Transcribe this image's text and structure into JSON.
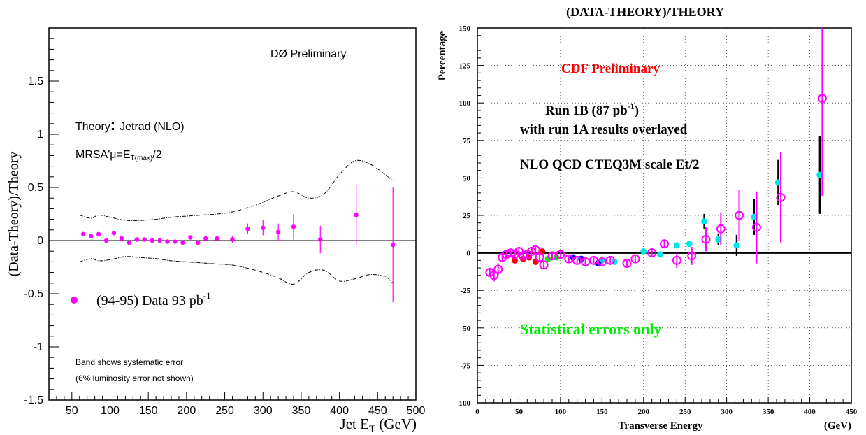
{
  "colors": {
    "magenta": "#ff00ff",
    "cyan": "#00e5e5",
    "red": "#ff0000",
    "blue": "#0000ff",
    "green": "#00ee00",
    "black": "#000000"
  },
  "chart_data": [
    {
      "type": "scatter",
      "ylabel": "(Data-Theory)/Theory",
      "xlabel_main": "Jet E",
      "xlabel_sub": "T",
      "xlabel_unit": " (GeV)",
      "xlim": [
        20,
        500
      ],
      "ylim": [
        -1.5,
        2.0
      ],
      "x_ticks": [
        "50",
        "100",
        "150",
        "200",
        "250",
        "300",
        "350",
        "400",
        "450",
        "500"
      ],
      "x_tick_values": [
        50,
        100,
        150,
        200,
        250,
        300,
        350,
        400,
        450,
        500
      ],
      "y_ticks": [
        "-1.5",
        "-1",
        "-0.5",
        "0",
        "0.5",
        "1",
        "1.5"
      ],
      "y_tick_values": [
        -1.5,
        -1,
        -0.5,
        0,
        0.5,
        1,
        1.5
      ],
      "annotation_top": "DØ Preliminary",
      "theory_label": "Theory",
      "theory_colon": ":",
      "theory_value": "Jetrad (NLO)",
      "mrsa_label": "MRSA'",
      "mu_eq": "μ=E",
      "mu_sub": "T(max)",
      "mu_tail": "/2",
      "legend_label": "(94-95) Data 93 pb",
      "legend_sup": "-1",
      "band_note_1": "Band shows systematic error",
      "band_note_2": "(6% luminosity error not shown)",
      "series": [
        {
          "marker": "filled-circle",
          "color": "#ff00ff",
          "points": [
            {
              "x": 65,
              "y": 0.06,
              "err": 0
            },
            {
              "x": 75,
              "y": 0.04,
              "err": 0
            },
            {
              "x": 85,
              "y": 0.06,
              "err": 0
            },
            {
              "x": 95,
              "y": 0.0,
              "err": 0
            },
            {
              "x": 105,
              "y": 0.07,
              "err": 0
            },
            {
              "x": 115,
              "y": 0.02,
              "err": 0
            },
            {
              "x": 125,
              "y": -0.02,
              "err": 0
            },
            {
              "x": 135,
              "y": 0.01,
              "err": 0
            },
            {
              "x": 145,
              "y": 0.01,
              "err": 0
            },
            {
              "x": 155,
              "y": 0.0,
              "err": 0
            },
            {
              "x": 165,
              "y": 0.0,
              "err": 0
            },
            {
              "x": 175,
              "y": -0.01,
              "err": 0
            },
            {
              "x": 185,
              "y": -0.01,
              "err": 0
            },
            {
              "x": 195,
              "y": -0.02,
              "err": 0
            },
            {
              "x": 205,
              "y": 0.03,
              "err": 0
            },
            {
              "x": 215,
              "y": -0.02,
              "err": 0
            },
            {
              "x": 225,
              "y": 0.02,
              "err": 0
            },
            {
              "x": 240,
              "y": 0.02,
              "err": 0
            },
            {
              "x": 260,
              "y": 0.01,
              "err": 0.03
            },
            {
              "x": 280,
              "y": 0.11,
              "err": 0.05
            },
            {
              "x": 300,
              "y": 0.12,
              "err": 0.07
            },
            {
              "x": 320,
              "y": 0.08,
              "err": 0.08
            },
            {
              "x": 340,
              "y": 0.13,
              "err": 0.12
            },
            {
              "x": 375,
              "y": 0.01,
              "err": 0.13
            },
            {
              "x": 422,
              "y": 0.24,
              "err": 0.28
            },
            {
              "x": 470,
              "y": -0.04,
              "err": 0.54
            }
          ]
        }
      ],
      "band": {
        "x": [
          60,
          75,
          85,
          100,
          120,
          140,
          160,
          180,
          200,
          220,
          240,
          260,
          280,
          300,
          320,
          340,
          360,
          380,
          400,
          420,
          440,
          460,
          470
        ],
        "upper": [
          0.24,
          0.21,
          0.24,
          0.22,
          0.19,
          0.19,
          0.2,
          0.22,
          0.23,
          0.24,
          0.25,
          0.27,
          0.31,
          0.36,
          0.42,
          0.46,
          0.4,
          0.44,
          0.62,
          0.75,
          0.72,
          0.62,
          0.56
        ],
        "lower": [
          -0.2,
          -0.17,
          -0.19,
          -0.18,
          -0.15,
          -0.16,
          -0.17,
          -0.19,
          -0.2,
          -0.21,
          -0.22,
          -0.23,
          -0.26,
          -0.3,
          -0.35,
          -0.41,
          -0.3,
          -0.28,
          -0.38,
          -0.36,
          -0.32,
          -0.34,
          -0.4
        ]
      }
    },
    {
      "type": "scatter",
      "title": "(DATA-THEORY)/THEORY",
      "ylabel": "Percentage",
      "xlabel": "Transverse Energy",
      "xunit": "(GeV)",
      "xlim": [
        0,
        450
      ],
      "ylim": [
        -100,
        150
      ],
      "grid": true,
      "x_ticks": [
        "0",
        "50",
        "100",
        "150",
        "200",
        "250",
        "300",
        "350",
        "400",
        "450"
      ],
      "x_tick_values": [
        0,
        50,
        100,
        150,
        200,
        250,
        300,
        350,
        400,
        450
      ],
      "y_ticks": [
        "-100",
        "-75",
        "-50",
        "-25",
        "0",
        "25",
        "50",
        "75",
        "100",
        "125",
        "150"
      ],
      "y_tick_values": [
        -100,
        -75,
        -50,
        -25,
        0,
        25,
        50,
        75,
        100,
        125,
        150
      ],
      "annotation_cdf": "CDF Preliminary",
      "annotation_run_a": "Run 1B (87 pb",
      "annotation_run_sup": "-1",
      "annotation_run_b": ")",
      "annotation_overlay": "with run 1A results overlayed",
      "annotation_nlo": "NLO QCD CTEQ3M  scale Et/2",
      "annotation_stat": "Statistical errors  only",
      "series": [
        {
          "marker": "open-circle",
          "color": "#ff00ff",
          "points": [
            {
              "x": 15,
              "y": -13,
              "err": 3
            },
            {
              "x": 20,
              "y": -15,
              "err": 4
            },
            {
              "x": 25,
              "y": -11,
              "err": 4
            },
            {
              "x": 30,
              "y": -3,
              "err": 3
            },
            {
              "x": 35,
              "y": -1,
              "err": 2
            },
            {
              "x": 40,
              "y": 0,
              "err": 2
            },
            {
              "x": 45,
              "y": -1,
              "err": 2
            },
            {
              "x": 50,
              "y": 1,
              "err": 2
            },
            {
              "x": 55,
              "y": -2,
              "err": 2
            },
            {
              "x": 60,
              "y": -1,
              "err": 2
            },
            {
              "x": 65,
              "y": 1,
              "err": 2
            },
            {
              "x": 70,
              "y": 2,
              "err": 2
            },
            {
              "x": 75,
              "y": -3,
              "err": 2
            },
            {
              "x": 80,
              "y": -8,
              "err": 3
            },
            {
              "x": 90,
              "y": -2,
              "err": 2
            },
            {
              "x": 100,
              "y": -1,
              "err": 2
            },
            {
              "x": 110,
              "y": -4,
              "err": 2
            },
            {
              "x": 120,
              "y": -5,
              "err": 2
            },
            {
              "x": 130,
              "y": -6,
              "err": 2
            },
            {
              "x": 140,
              "y": -5,
              "err": 2
            },
            {
              "x": 150,
              "y": -6,
              "err": 2
            },
            {
              "x": 160,
              "y": -5,
              "err": 2
            },
            {
              "x": 180,
              "y": -7,
              "err": 2
            },
            {
              "x": 190,
              "y": -4,
              "err": 2
            },
            {
              "x": 210,
              "y": 0,
              "err": 3
            },
            {
              "x": 225,
              "y": 6,
              "err": 3
            },
            {
              "x": 240,
              "y": -5,
              "err": 5
            },
            {
              "x": 258,
              "y": -2,
              "err": 6
            },
            {
              "x": 275,
              "y": 9,
              "err": 8
            },
            {
              "x": 293,
              "y": 16,
              "err": 11
            },
            {
              "x": 315,
              "y": 25,
              "err": 17
            },
            {
              "x": 336,
              "y": 17,
              "err": 24
            },
            {
              "x": 365,
              "y": 37,
              "err": 30
            },
            {
              "x": 415,
              "y": 103,
              "err": 65
            }
          ]
        },
        {
          "marker": "filled-circle",
          "color": "#00e5e5",
          "points": [
            {
              "x": 150,
              "y": -5,
              "err": 0
            },
            {
              "x": 165,
              "y": -6,
              "err": 0
            },
            {
              "x": 200,
              "y": 1,
              "err": 0
            },
            {
              "x": 220,
              "y": -1,
              "err": 0
            },
            {
              "x": 240,
              "y": 5,
              "err": 0
            },
            {
              "x": 255,
              "y": 6,
              "err": 0
            },
            {
              "x": 273,
              "y": 21,
              "err": 5
            },
            {
              "x": 290,
              "y": 9,
              "err": 4
            },
            {
              "x": 312,
              "y": 5,
              "err": 7
            },
            {
              "x": 333,
              "y": 24,
              "err": 12
            },
            {
              "x": 362,
              "y": 47,
              "err": 15
            },
            {
              "x": 412,
              "y": 52,
              "err": 26
            }
          ]
        },
        {
          "marker": "filled-circle",
          "color": "#ff0000",
          "points": [
            {
              "x": 45,
              "y": -5,
              "err": 0
            },
            {
              "x": 55,
              "y": -4,
              "err": 0
            },
            {
              "x": 62,
              "y": -3,
              "err": 0
            },
            {
              "x": 70,
              "y": -6,
              "err": 0
            },
            {
              "x": 78,
              "y": 1,
              "err": 0
            }
          ]
        },
        {
          "marker": "filled-circle",
          "color": "#00ee00",
          "points": [
            {
              "x": 85,
              "y": -4,
              "err": 0
            },
            {
              "x": 95,
              "y": -3,
              "err": 0
            }
          ]
        },
        {
          "marker": "filled-circle",
          "color": "#0000ff",
          "points": [
            {
              "x": 115,
              "y": -3,
              "err": 0
            },
            {
              "x": 125,
              "y": -4,
              "err": 0
            },
            {
              "x": 145,
              "y": -7,
              "err": 0
            }
          ]
        }
      ]
    }
  ]
}
